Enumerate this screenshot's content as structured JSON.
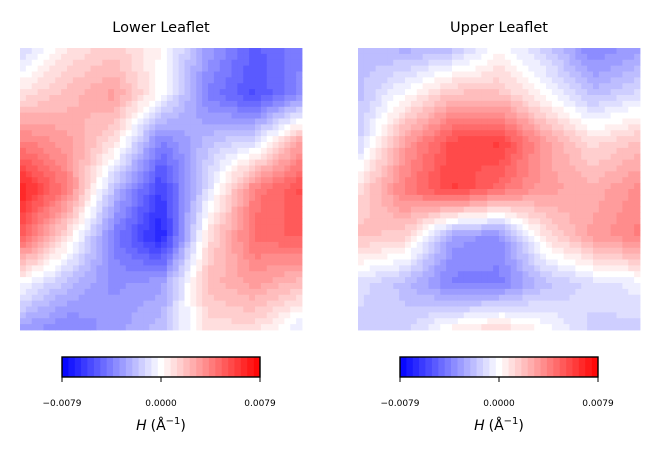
{
  "chart_data": [
    {
      "type": "heatmap",
      "title": "Lower Leaflet",
      "xlabel": "",
      "ylabel": "",
      "grid": false,
      "colormap": "bwr",
      "vmin": -0.0079,
      "vmax": 0.0079,
      "levels": 31,
      "colorbar": {
        "label_var": "H",
        "label_unit": "(Å",
        "label_exp": "−1",
        "label_close": ")",
        "ticks": [
          "−0.0079",
          "0.0000",
          "0.0079"
        ]
      },
      "nx": 7,
      "ny": 7,
      "z": [
        [
          -0.0015,
          0.0008,
          0.0015,
          0.0002,
          -0.003,
          -0.005,
          -0.004
        ],
        [
          0.001,
          0.002,
          0.003,
          0.0,
          -0.004,
          -0.0055,
          -0.0035
        ],
        [
          0.004,
          0.003,
          0.001,
          -0.004,
          -0.002,
          -0.001,
          0.003
        ],
        [
          0.007,
          0.004,
          -0.002,
          -0.006,
          -0.001,
          0.004,
          0.0055
        ],
        [
          0.005,
          0.001,
          -0.004,
          -0.007,
          0.001,
          0.0045,
          0.005
        ],
        [
          0.0,
          -0.002,
          -0.0035,
          -0.003,
          0.002,
          0.003,
          0.002
        ],
        [
          -0.003,
          -0.004,
          -0.003,
          -0.002,
          0.001,
          0.001,
          -0.001
        ]
      ]
    },
    {
      "type": "heatmap",
      "title": "Upper Leaflet",
      "xlabel": "",
      "ylabel": "",
      "grid": false,
      "colormap": "bwr",
      "vmin": -0.0079,
      "vmax": 0.0079,
      "levels": 31,
      "colorbar": {
        "label_var": "H",
        "label_unit": "(Å",
        "label_exp": "−1",
        "label_close": ")",
        "ticks": [
          "−0.0079",
          "0.0000",
          "0.0079"
        ]
      },
      "nx": 7,
      "ny": 7,
      "z": [
        [
          -0.002,
          -0.0025,
          -0.002,
          0.0,
          -0.0015,
          -0.004,
          -0.003
        ],
        [
          -0.002,
          0.0,
          0.002,
          0.002,
          0.0,
          -0.002,
          -0.001
        ],
        [
          -0.0015,
          0.003,
          0.0055,
          0.006,
          0.003,
          0.001,
          0.002
        ],
        [
          0.001,
          0.004,
          0.006,
          0.0045,
          0.003,
          0.0025,
          0.0035
        ],
        [
          0.002,
          0.0015,
          -0.003,
          -0.0035,
          0.001,
          0.003,
          0.004
        ],
        [
          -0.001,
          -0.002,
          -0.004,
          -0.004,
          -0.002,
          -0.001,
          -0.0005
        ],
        [
          -0.0015,
          -0.0015,
          0.0005,
          0.0015,
          0.0,
          -0.0015,
          -0.0015
        ]
      ]
    }
  ]
}
